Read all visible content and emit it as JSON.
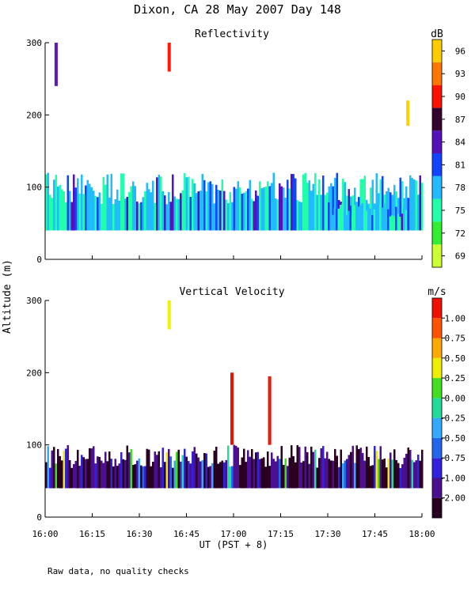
{
  "figure": {
    "title": "Dixon, CA 28 May 2007  Day 148",
    "ylabel": "Altitude (m)",
    "xlabel": "UT  (PST + 8)",
    "footnote": "Raw data, no quality checks",
    "xticks": [
      "16:00",
      "16:15",
      "16:30",
      "16:45",
      "17:00",
      "17:15",
      "17:30",
      "17:45",
      "18:00"
    ]
  },
  "chart_data": [
    {
      "type": "heatmap",
      "title": "Reflectivity",
      "xlabel": "UT  (PST + 8)",
      "ylabel": "Altitude (m)",
      "x_range": [
        "16:00",
        "18:00"
      ],
      "ylim": [
        0,
        300
      ],
      "yticks": [
        "0",
        "100",
        "200",
        "300"
      ],
      "colorbar": {
        "unit": "dB",
        "ticks": [
          "69",
          "72",
          "75",
          "78",
          "81",
          "84",
          "87",
          "90",
          "93",
          "96"
        ],
        "colors": [
          "#ccff33",
          "#33ee33",
          "#22ffaa",
          "#22bbff",
          "#1144ff",
          "#5511bb",
          "#33002f",
          "#ff1100",
          "#ff7700",
          "#ffcc00"
        ]
      },
      "features": [
        {
          "x_from": "16:00",
          "x_to": "18:00",
          "alt_from": 40,
          "alt_to": 120,
          "dominant": "75-81 dB"
        },
        {
          "x_from": "17:30",
          "x_to": "17:55",
          "alt_from": 40,
          "alt_to": 80,
          "dominant": "81-87 dB"
        },
        {
          "x_from": "16:03",
          "x_to": "16:04",
          "alt_from": 240,
          "alt_to": 300,
          "dominant": "84-87 dB"
        },
        {
          "x_from": "16:39",
          "x_to": "16:40",
          "alt_from": 260,
          "alt_to": 300,
          "dominant": "90 dB"
        },
        {
          "x_from": "17:55",
          "x_to": "17:56",
          "alt_from": 185,
          "alt_to": 220,
          "dominant": "93-96 dB"
        }
      ]
    },
    {
      "type": "heatmap",
      "title": "Vertical Velocity",
      "xlabel": "UT  (PST + 8)",
      "ylabel": "Altitude (m)",
      "x_range": [
        "16:00",
        "18:00"
      ],
      "ylim": [
        0,
        300
      ],
      "yticks": [
        "0",
        "100",
        "200",
        "300"
      ],
      "colorbar": {
        "unit": "m/s",
        "ticks": [
          "-2.00",
          "-1.00",
          "-0.75",
          "-0.50",
          "-0.25",
          "0.00",
          "0.25",
          "0.50",
          "0.75",
          "1.00"
        ],
        "colors": [
          "#2a0020",
          "#4a1090",
          "#3322dd",
          "#2266ee",
          "#33aaff",
          "#22dd99",
          "#44dd22",
          "#eeee00",
          "#ffaa00",
          "#ff5500",
          "#ee1100"
        ]
      },
      "features": [
        {
          "x_from": "16:00",
          "x_to": "18:00",
          "alt_from": 40,
          "alt_to": 100,
          "dominant": "-2.00 to -0.75 m/s"
        },
        {
          "x_from": "16:59",
          "x_to": "17:00",
          "alt_from": 100,
          "alt_to": 200,
          "dominant": "1.00 m/s"
        },
        {
          "x_from": "17:11",
          "x_to": "17:12",
          "alt_from": 100,
          "alt_to": 195,
          "dominant": "1.00 m/s"
        },
        {
          "x_from": "16:39",
          "x_to": "16:40",
          "alt_from": 260,
          "alt_to": 300,
          "dominant": "0.50-1.00 m/s"
        }
      ]
    }
  ]
}
